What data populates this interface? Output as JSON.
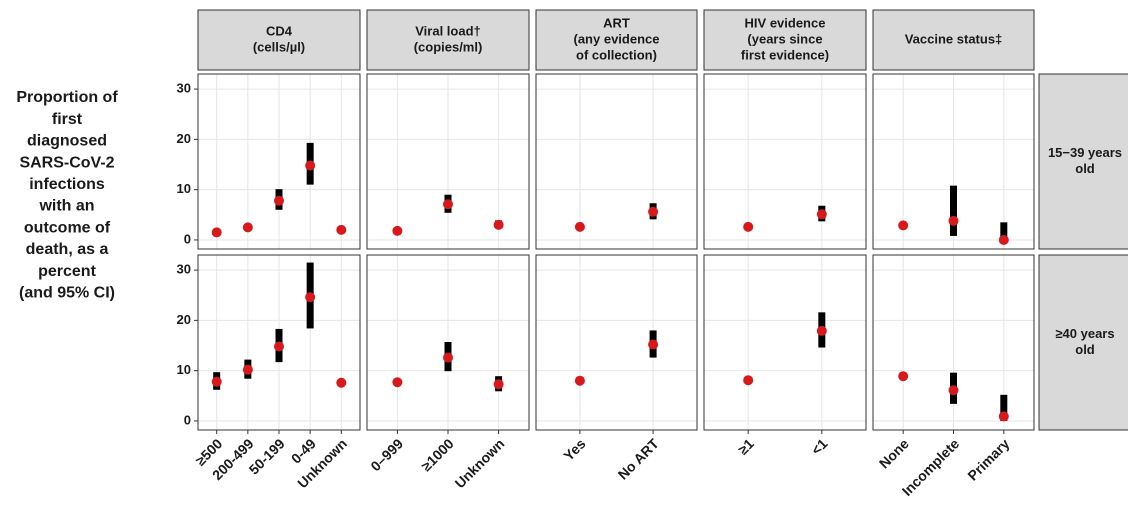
{
  "chart_data": {
    "type": "pointrange",
    "ylabel": [
      "Proportion of",
      "first",
      "diagnosed",
      "SARS-CoV-2",
      "infections",
      "with an",
      "outcome of",
      "death, as a",
      "percent",
      "(and 95% CI)"
    ],
    "ylim": [
      -1.8,
      33.0
    ],
    "yticks": [
      0,
      10,
      20,
      30
    ],
    "grid": true,
    "point_color": "#d7191c",
    "bar_color": "#000000",
    "row_labels": [
      [
        "15−39 years",
        "old"
      ],
      [
        "≥40 years",
        "old"
      ]
    ],
    "panels": [
      {
        "title": [
          "CD4",
          "(cells/µl)"
        ],
        "categories": [
          "≥500",
          "200-499",
          "50-199",
          "0-49",
          "Unknown"
        ],
        "rows": [
          {
            "values": [
              1.5,
              2.5,
              7.8,
              14.8,
              2.0
            ],
            "lower": [
              1.0,
              1.9,
              6.0,
              11.0,
              1.7
            ],
            "upper": [
              2.2,
              3.2,
              10.1,
              19.3,
              2.4
            ]
          },
          {
            "values": [
              7.8,
              10.2,
              14.8,
              24.6,
              7.6
            ],
            "lower": [
              6.2,
              8.4,
              11.7,
              18.4,
              7.0
            ],
            "upper": [
              9.7,
              12.2,
              18.3,
              31.5,
              8.2
            ]
          }
        ]
      },
      {
        "title": [
          "Viral load†",
          "(copies/ml)"
        ],
        "categories": [
          "0–999",
          "≥1000",
          "Unknown"
        ],
        "rows": [
          {
            "values": [
              1.8,
              7.1,
              3.0
            ],
            "lower": [
              1.6,
              5.4,
              2.3
            ],
            "upper": [
              2.0,
              9.0,
              3.9
            ]
          },
          {
            "values": [
              7.7,
              12.6,
              7.3
            ],
            "lower": [
              7.4,
              9.9,
              5.9
            ],
            "upper": [
              8.0,
              15.7,
              8.9
            ]
          }
        ]
      },
      {
        "title": [
          "ART",
          "(any evidence",
          "of collection)"
        ],
        "categories": [
          "Yes",
          "No ART"
        ],
        "rows": [
          {
            "values": [
              2.6,
              5.6
            ],
            "lower": [
              2.4,
              4.1
            ],
            "upper": [
              2.9,
              7.3
            ]
          },
          {
            "values": [
              8.0,
              15.2
            ],
            "lower": [
              7.7,
              12.6
            ],
            "upper": [
              8.3,
              18.0
            ]
          }
        ]
      },
      {
        "title": [
          "HIV evidence",
          "(years since",
          "first evidence)"
        ],
        "categories": [
          "≥1",
          "<1"
        ],
        "rows": [
          {
            "values": [
              2.6,
              5.1
            ],
            "lower": [
              2.4,
              3.7
            ],
            "upper": [
              2.9,
              6.8
            ]
          },
          {
            "values": [
              8.1,
              17.9
            ],
            "lower": [
              7.8,
              14.6
            ],
            "upper": [
              8.4,
              21.6
            ]
          }
        ]
      },
      {
        "title": [
          "Vaccine status‡"
        ],
        "categories": [
          "None",
          "Incomplete",
          "Primary"
        ],
        "rows": [
          {
            "values": [
              2.9,
              3.8,
              0.0
            ],
            "lower": [
              2.6,
              0.8,
              0.0
            ],
            "upper": [
              3.2,
              10.8,
              3.5
            ]
          },
          {
            "values": [
              8.9,
              6.1,
              0.9
            ],
            "lower": [
              8.4,
              3.4,
              0.0
            ],
            "upper": [
              9.4,
              9.6,
              5.2
            ]
          }
        ]
      }
    ]
  }
}
